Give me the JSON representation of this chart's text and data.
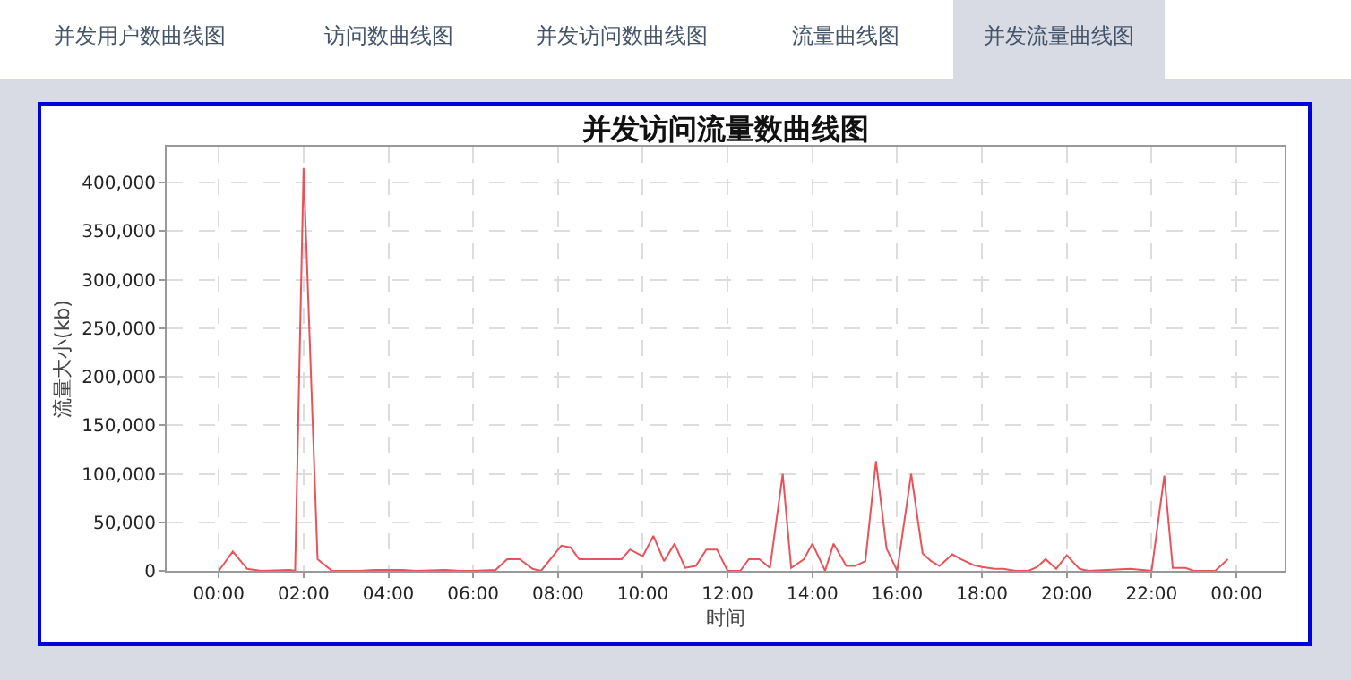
{
  "chart_data": {
    "type": "line",
    "title": "并发访问流量数曲线图",
    "xlabel": "时间",
    "ylabel": "流量大小(kb)",
    "annotations": [
      "并发用户数曲线图",
      "访问数曲线图",
      "并发访问数曲线图",
      "流量曲线图",
      "并发流量曲线图"
    ],
    "series": [
      {
        "color": "#e8535b",
        "x": [
          0,
          0.33,
          0.67,
          1.0,
          1.67,
          1.8,
          2.0,
          2.33,
          2.67,
          3.33,
          3.67,
          4.33,
          4.67,
          5.33,
          5.67,
          6.0,
          6.53,
          6.8,
          7.1,
          7.4,
          7.6,
          8.08,
          8.3,
          8.5,
          9.5,
          9.7,
          10.0,
          10.25,
          10.5,
          10.75,
          11.0,
          11.25,
          11.5,
          11.75,
          12.0,
          12.3,
          12.5,
          12.75,
          13.0,
          13.3,
          13.5,
          13.8,
          14.0,
          14.3,
          14.5,
          14.8,
          15.0,
          15.25,
          15.5,
          15.75,
          16.0,
          16.33,
          16.6,
          16.8,
          17.0,
          17.3,
          17.5,
          17.8,
          18.0,
          18.3,
          18.5,
          18.8,
          19.1,
          19.3,
          19.5,
          19.75,
          20.0,
          20.3,
          20.5,
          21.5,
          22.0,
          22.3,
          22.5,
          22.8,
          23.0,
          23.5,
          23.8
        ],
        "values": [
          0,
          20000,
          2000,
          0,
          1000,
          0,
          415000,
          12000,
          0,
          0,
          1000,
          1000,
          0,
          1000,
          0,
          0,
          1000,
          12000,
          12000,
          2000,
          0,
          26000,
          24000,
          12000,
          12000,
          22000,
          15000,
          36000,
          10000,
          28000,
          3000,
          5000,
          22000,
          22000,
          0,
          0,
          12000,
          12000,
          3000,
          100000,
          3000,
          12000,
          28000,
          0,
          28000,
          5000,
          5000,
          10000,
          113000,
          23000,
          0,
          100000,
          18000,
          10000,
          5000,
          17000,
          12000,
          6000,
          4000,
          2000,
          2000,
          0,
          0,
          4000,
          12000,
          2000,
          16000,
          2000,
          0,
          2000,
          0,
          98000,
          3000,
          3000,
          0,
          0,
          12000
        ]
      }
    ],
    "xlim": [
      -1.23,
      25.14
    ],
    "ylim": [
      0,
      437000
    ],
    "xticks": [
      {
        "value": 0,
        "label": "00:00"
      },
      {
        "value": 2,
        "label": "02:00"
      },
      {
        "value": 4,
        "label": "04:00"
      },
      {
        "value": 6,
        "label": "06:00"
      },
      {
        "value": 8,
        "label": "08:00"
      },
      {
        "value": 10,
        "label": "10:00"
      },
      {
        "value": 12,
        "label": "12:00"
      },
      {
        "value": 14,
        "label": "14:00"
      },
      {
        "value": 16,
        "label": "16:00"
      },
      {
        "value": 18,
        "label": "18:00"
      },
      {
        "value": 20,
        "label": "20:00"
      },
      {
        "value": 22,
        "label": "22:00"
      },
      {
        "value": 24,
        "label": "00:00"
      }
    ],
    "yticks": [
      0,
      {
        "value": 50000,
        "label": "50,000"
      },
      {
        "value": 100000,
        "label": "100,000"
      },
      {
        "value": 150000,
        "label": "150,000"
      },
      {
        "value": 200000,
        "label": "200,000"
      },
      {
        "value": 250000,
        "label": "250,000"
      },
      {
        "value": 300000,
        "label": "300,000"
      },
      {
        "value": 350000,
        "label": "350,000"
      },
      {
        "value": 400000,
        "label": "400,000"
      }
    ],
    "grid": true
  }
}
